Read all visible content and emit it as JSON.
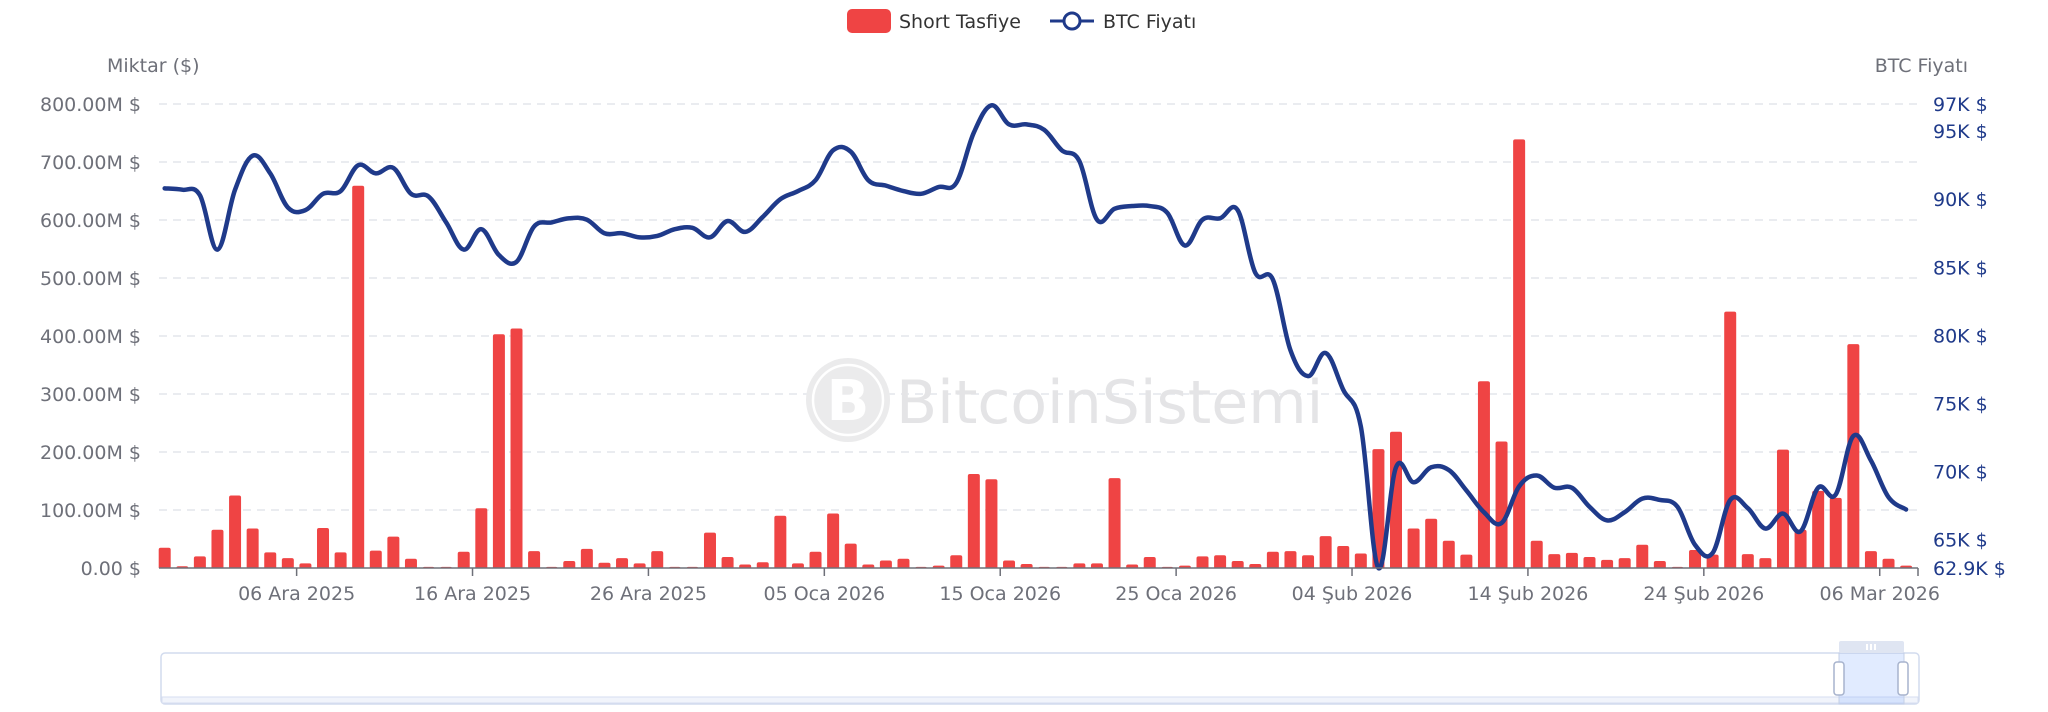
{
  "legend": {
    "bar_label": "Short Tasfiye",
    "line_label": "BTC Fiyatı"
  },
  "watermark": "BitcoinSistemi",
  "chart_data": {
    "type": "bar+line",
    "title": "",
    "legend_position": "top-center",
    "grid": "dashed horizontal",
    "colors": {
      "bars": "#ef4444",
      "line": "#1f3a8a"
    },
    "left_axis": {
      "label": "Miktar ($)",
      "range": [
        0,
        800
      ],
      "unit": "M $",
      "tick_labels": [
        "0.00 $",
        "100.00M $",
        "200.00M $",
        "300.00M $",
        "400.00M $",
        "500.00M $",
        "600.00M $",
        "700.00M $",
        "800.00M $"
      ],
      "tick_values": [
        0,
        100,
        200,
        300,
        400,
        500,
        600,
        700,
        800
      ]
    },
    "right_axis": {
      "label": "BTC Fiyatı",
      "range": [
        62.9,
        97
      ],
      "unit": "K $",
      "tick_labels": [
        "62.9K $",
        "65K $",
        "70K $",
        "75K $",
        "80K $",
        "85K $",
        "90K $",
        "95K $",
        "97K $"
      ],
      "tick_values": [
        62.9,
        65,
        70,
        75,
        80,
        85,
        90,
        95,
        97
      ]
    },
    "x_axis": {
      "tick_labels": [
        "06 Ara 2025",
        "16 Ara 2025",
        "26 Ara 2025",
        "05 Oca 2026",
        "15 Oca 2026",
        "25 Oca 2026",
        "04 Şub 2026",
        "14 Şub 2026",
        "24 Şub 2026",
        "06 Mar 2026"
      ],
      "tick_dates": [
        "2025-12-06",
        "2025-12-16",
        "2025-12-26",
        "2026-01-05",
        "2026-01-15",
        "2026-01-25",
        "2026-02-04",
        "2026-02-14",
        "2026-02-24",
        "2026-03-06"
      ]
    },
    "x": [
      "2025-11-28",
      "2025-11-29",
      "2025-11-30",
      "2025-12-01",
      "2025-12-02",
      "2025-12-03",
      "2025-12-04",
      "2025-12-05",
      "2025-12-06",
      "2025-12-07",
      "2025-12-08",
      "2025-12-09",
      "2025-12-10",
      "2025-12-11",
      "2025-12-12",
      "2025-12-13",
      "2025-12-14",
      "2025-12-15",
      "2025-12-16",
      "2025-12-17",
      "2025-12-18",
      "2025-12-19",
      "2025-12-20",
      "2025-12-21",
      "2025-12-22",
      "2025-12-23",
      "2025-12-24",
      "2025-12-25",
      "2025-12-26",
      "2025-12-27",
      "2025-12-28",
      "2025-12-29",
      "2025-12-30",
      "2025-12-31",
      "2026-01-01",
      "2026-01-02",
      "2026-01-03",
      "2026-01-04",
      "2026-01-05",
      "2026-01-06",
      "2026-01-07",
      "2026-01-08",
      "2026-01-09",
      "2026-01-10",
      "2026-01-11",
      "2026-01-12",
      "2026-01-13",
      "2026-01-14",
      "2026-01-15",
      "2026-01-16",
      "2026-01-17",
      "2026-01-18",
      "2026-01-19",
      "2026-01-20",
      "2026-01-21",
      "2026-01-22",
      "2026-01-23",
      "2026-01-24",
      "2026-01-25",
      "2026-01-26",
      "2026-01-27",
      "2026-01-28",
      "2026-01-29",
      "2026-01-30",
      "2026-01-31",
      "2026-02-01",
      "2026-02-02",
      "2026-02-03",
      "2026-02-04",
      "2026-02-05",
      "2026-02-06",
      "2026-02-07",
      "2026-02-08",
      "2026-02-09",
      "2026-02-10",
      "2026-02-11",
      "2026-02-12",
      "2026-02-13",
      "2026-02-14",
      "2026-02-15",
      "2026-02-16",
      "2026-02-17",
      "2026-02-18",
      "2026-02-19",
      "2026-02-20",
      "2026-02-21",
      "2026-02-22",
      "2026-02-23",
      "2026-02-24",
      "2026-02-25",
      "2026-02-26",
      "2026-02-27",
      "2026-02-28",
      "2026-03-01",
      "2026-03-02",
      "2026-03-03",
      "2026-03-04",
      "2026-03-05",
      "2026-03-06",
      "2026-03-07"
    ],
    "series": [
      {
        "name": "Short Tasfiye",
        "type": "bar",
        "axis": "left",
        "values": [
          35,
          3,
          20,
          66,
          125,
          68,
          27,
          17,
          8,
          69,
          27,
          659,
          30,
          54,
          16,
          2,
          2,
          28,
          103,
          403,
          413,
          29,
          2,
          12,
          33,
          9,
          17,
          8,
          29,
          2,
          2,
          61,
          19,
          6,
          10,
          90,
          8,
          28,
          94,
          42,
          6,
          13,
          16,
          2,
          4,
          22,
          162,
          153,
          13,
          7,
          2,
          2,
          8,
          8,
          155,
          6,
          19,
          2,
          4,
          20,
          22,
          12,
          7,
          28,
          29,
          22,
          55,
          38,
          25,
          205,
          235,
          68,
          85,
          47,
          23,
          322,
          218,
          739,
          47,
          24,
          26,
          19,
          14,
          17,
          40,
          12,
          2,
          31,
          23,
          442,
          24,
          17,
          204,
          66,
          133,
          121,
          386,
          29,
          16,
          4
        ]
      },
      {
        "name": "BTC Fiyatı",
        "type": "line",
        "axis": "right",
        "values": [
          90.8,
          90.7,
          90.3,
          86.3,
          90.7,
          93.2,
          91.9,
          89.4,
          89.2,
          90.4,
          90.6,
          92.5,
          91.9,
          92.3,
          90.4,
          90.2,
          88.3,
          86.3,
          87.8,
          85.9,
          85.4,
          88.0,
          88.3,
          88.6,
          88.5,
          87.5,
          87.5,
          87.2,
          87.3,
          87.8,
          87.9,
          87.2,
          88.4,
          87.6,
          88.7,
          90.0,
          90.6,
          91.4,
          93.6,
          93.5,
          91.4,
          91.0,
          90.6,
          90.4,
          90.9,
          91.2,
          94.9,
          96.9,
          95.5,
          95.5,
          95.1,
          93.6,
          92.8,
          88.5,
          89.3,
          89.5,
          89.5,
          89.0,
          86.6,
          88.5,
          88.6,
          89.2,
          84.6,
          84.1,
          78.9,
          77.0,
          78.7,
          76.0,
          73.3,
          62.9,
          70.3,
          69.2,
          70.3,
          70.1,
          68.6,
          67.0,
          66.2,
          68.9,
          69.7,
          68.8,
          68.8,
          67.4,
          66.4,
          67.0,
          68.0,
          67.9,
          67.4,
          64.6,
          64.0,
          67.9,
          67.3,
          65.8,
          66.9,
          65.6,
          68.8,
          68.3,
          72.6,
          70.8,
          68.1,
          67.2
        ]
      }
    ],
    "data_zoom": {
      "start_percent": 95.6,
      "end_percent": 99.4
    }
  }
}
